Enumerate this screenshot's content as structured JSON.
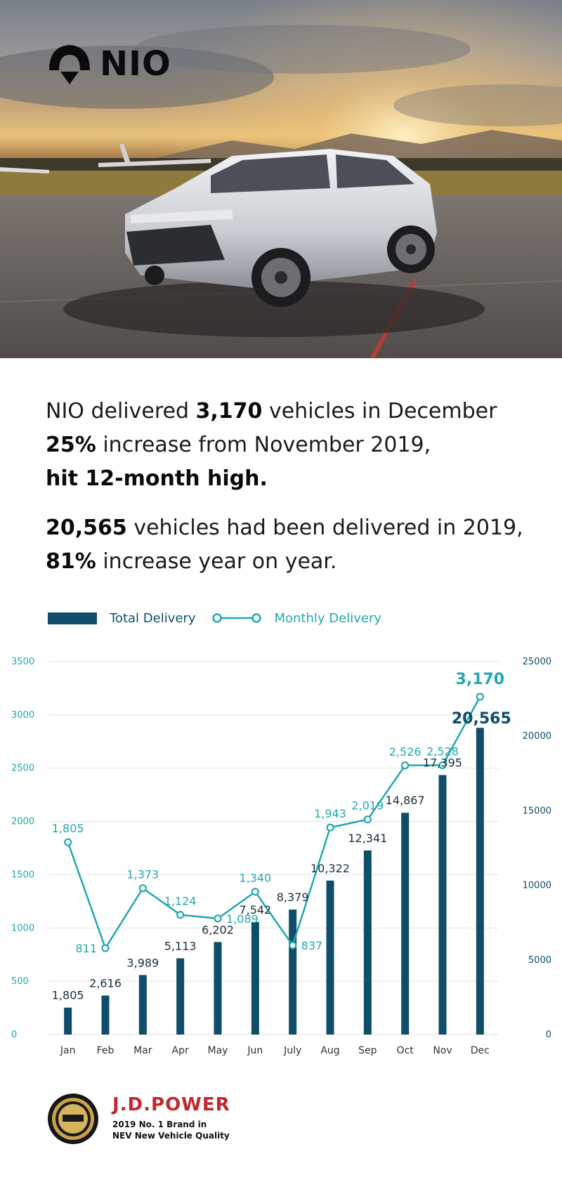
{
  "brand": {
    "name": "NIO"
  },
  "headline": {
    "line1": {
      "pre": "NIO delivered ",
      "bold": "3,170",
      "post": " vehicles in December"
    },
    "line2": {
      "bold": "25%",
      "post": " increase from November 2019,"
    },
    "line3": {
      "bold": "hit 12-month high."
    },
    "line4": {
      "bold": "20,565",
      "post": " vehicles had been delivered in 2019,"
    },
    "line5": {
      "bold": "81%",
      "post": " increase year on year."
    }
  },
  "legend": {
    "total": "Total Delivery",
    "monthly": "Monthly Delivery"
  },
  "colors": {
    "total": "#0f4d68",
    "monthly": "#23a8b0",
    "grid": "#e3e3e3"
  },
  "chart_data": {
    "type": "bar",
    "categories": [
      "Jan",
      "Feb",
      "Mar",
      "Apr",
      "May",
      "Jun",
      "July",
      "Aug",
      "Sep",
      "Oct",
      "Nov",
      "Dec"
    ],
    "series": [
      {
        "name": "Total Delivery",
        "type": "bar",
        "axis": "right",
        "values": [
          1805,
          2616,
          3989,
          5113,
          6202,
          7542,
          8379,
          10322,
          12341,
          14867,
          17395,
          20565
        ],
        "labels": [
          "1,805",
          "2,616",
          "3,989",
          "5,113",
          "6,202",
          "7,542",
          "8,379",
          "10,322",
          "12,341",
          "14,867",
          "17,395",
          "20,565"
        ]
      },
      {
        "name": "Monthly Delivery",
        "type": "line",
        "axis": "left",
        "values": [
          1805,
          811,
          1373,
          1124,
          1089,
          1340,
          837,
          1943,
          2019,
          2526,
          2528,
          3170
        ],
        "labels": [
          "1,805",
          "811",
          "1,373",
          "1,124",
          "1,089",
          "1,340",
          "837",
          "1,943",
          "2,019",
          "2,526",
          "2,528",
          "3,170"
        ]
      }
    ],
    "y_left": {
      "lim": [
        0,
        3500
      ],
      "ticks": [
        "0",
        "500",
        "1000",
        "1500",
        "2000",
        "2500",
        "3000",
        "3500"
      ]
    },
    "y_right": {
      "lim": [
        0,
        25000
      ],
      "ticks": [
        "0",
        "5000",
        "10000",
        "15000",
        "20000",
        "25000"
      ]
    },
    "grid": true,
    "legend_position": "top-left"
  },
  "footer": {
    "jd_brand": "J.D.POWER",
    "jd_line1": "2019 No. 1 Brand in",
    "jd_line2": "NEV New Vehicle Quality"
  }
}
